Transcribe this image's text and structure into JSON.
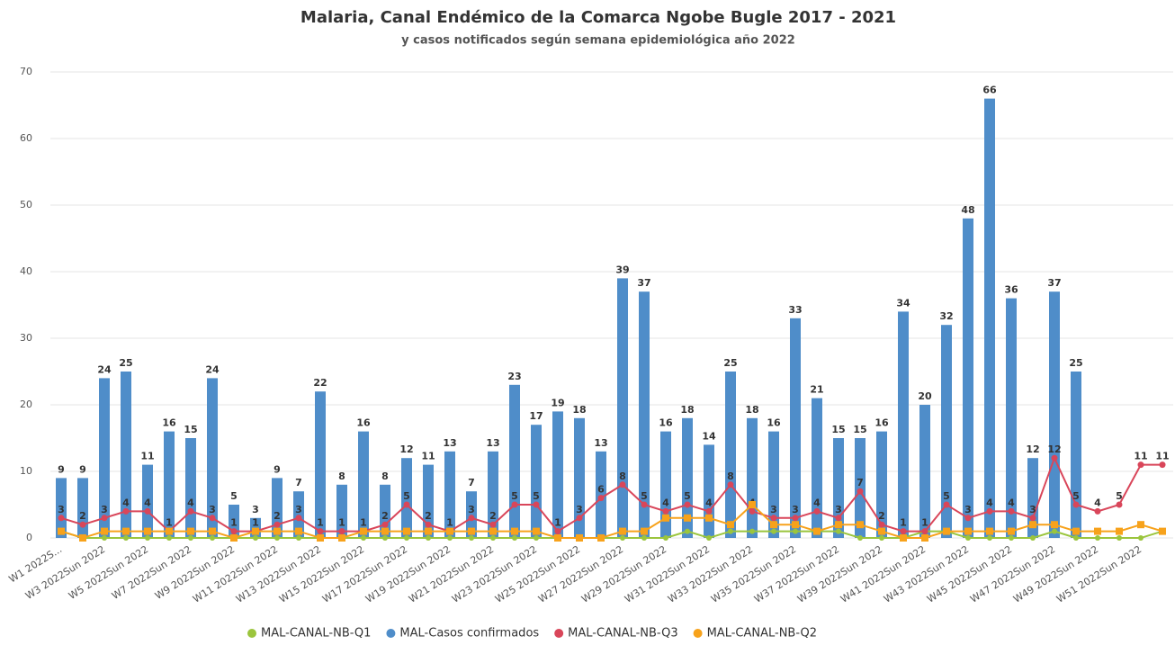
{
  "chart_data": {
    "type": "bar",
    "title": "Malaria, Canal Endémico de la Comarca Ngobe Bugle 2017 - 2021",
    "subtitle": "y casos notificados según semana epidemiológica año 2022",
    "categories": [
      "W1 2022S...",
      null,
      "W3 2022Sun 2022",
      null,
      "W5 2022Sun 2022",
      null,
      "W7 2022Sun 2022",
      null,
      "W9 2022Sun 2022",
      null,
      "W11 2022Sun 2022",
      null,
      "W13 2022Sun 2022",
      null,
      "W15 2022Sun 2022",
      null,
      "W17 2022Sun 2022",
      null,
      "W19 2022Sun 2022",
      null,
      "W21 2022Sun 2022",
      null,
      "W23 2022Sun 2022",
      null,
      "W25 2022Sun 2022",
      null,
      "W27 2022Sun 2022",
      null,
      "W29 2022Sun 2022",
      null,
      "W31 2022Sun 2022",
      null,
      "W33 2022Sun 2022",
      null,
      "W35 2022Sun 2022",
      null,
      "W37 2022Sun 2022",
      null,
      "W39 2022Sun 2022",
      null,
      "W41 2022Sun 2022",
      null,
      "W43 2022Sun 2022",
      null,
      "W45 2022Sun 2022",
      null,
      "W47 2022Sun 2022",
      null,
      "W49 2022Sun 2022",
      null,
      "W51 2022Sun 2022",
      null
    ],
    "series": [
      {
        "name": "MAL-CANAL-NB-Q1",
        "color": "#9bc53d",
        "kind": "line",
        "values": [
          1,
          0,
          0,
          0,
          0,
          0,
          0,
          0,
          0,
          0,
          0,
          0,
          0,
          0,
          0,
          0,
          0,
          0,
          0,
          0,
          0,
          0,
          0,
          0,
          0,
          0,
          0,
          0,
          0,
          1,
          0,
          1,
          1,
          1,
          1,
          1,
          1,
          0,
          0,
          0,
          1,
          1,
          0,
          0,
          0,
          0,
          1,
          0,
          0,
          0,
          0,
          1
        ]
      },
      {
        "name": "MAL-Casos confirmados",
        "color": "#4f8dc9",
        "kind": "bar",
        "values": [
          9,
          9,
          24,
          25,
          11,
          16,
          15,
          24,
          5,
          3,
          9,
          7,
          22,
          8,
          16,
          8,
          12,
          11,
          13,
          7,
          13,
          23,
          17,
          19,
          18,
          13,
          39,
          37,
          16,
          18,
          14,
          25,
          18,
          16,
          33,
          21,
          15,
          15,
          16,
          34,
          20,
          32,
          48,
          66,
          36,
          12,
          37,
          25,
          null,
          null,
          null,
          null
        ]
      },
      {
        "name": "MAL-CANAL-NB-Q3",
        "color": "#d9465a",
        "kind": "line",
        "values": [
          3,
          2,
          3,
          4,
          4,
          1,
          4,
          3,
          1,
          1,
          2,
          3,
          1,
          1,
          1,
          2,
          5,
          2,
          1,
          3,
          2,
          5,
          5,
          1,
          3,
          6,
          8,
          5,
          4,
          5,
          4,
          8,
          4,
          3,
          3,
          4,
          3,
          7,
          2,
          1,
          1,
          5,
          3,
          4,
          4,
          3,
          12,
          5,
          4,
          5,
          11,
          11
        ]
      },
      {
        "name": "MAL-CANAL-NB-Q2",
        "color": "#f7a21b",
        "kind": "line",
        "values": [
          1,
          0,
          1,
          1,
          1,
          1,
          1,
          1,
          0,
          1,
          1,
          1,
          0,
          0,
          1,
          1,
          1,
          1,
          1,
          1,
          1,
          1,
          1,
          0,
          0,
          0,
          1,
          1,
          3,
          3,
          3,
          2,
          5,
          2,
          2,
          1,
          2,
          2,
          1,
          0,
          0,
          1,
          1,
          1,
          1,
          2,
          2,
          1,
          1,
          1,
          2,
          1
        ]
      }
    ],
    "ylim": [
      0,
      70
    ],
    "yticks": [
      0,
      10,
      20,
      30,
      40,
      50,
      60,
      70
    ],
    "grid": true,
    "legend": "bottom"
  }
}
